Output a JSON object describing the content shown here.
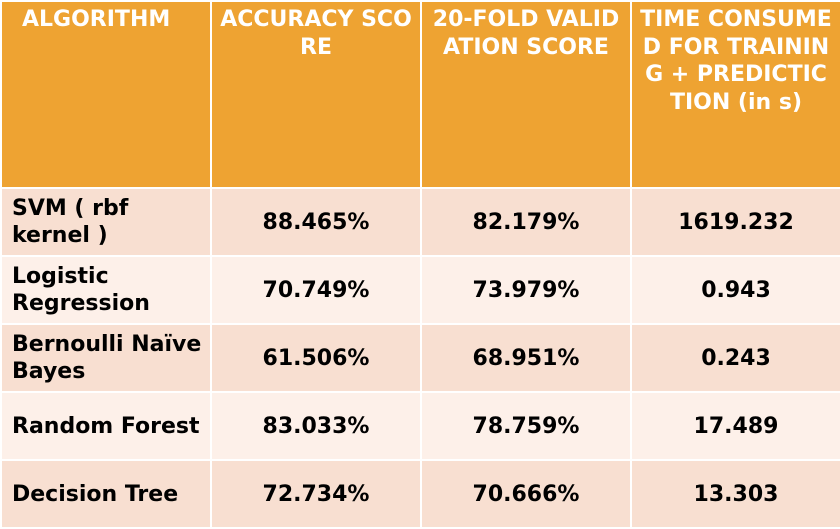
{
  "table": {
    "headers": [
      "ALGORITHM",
      "ACCURACY SCORE",
      "20-FOLD VALIDATION SCORE",
      "TIME CONSUMED FOR TRAINING + PREDICTICTION (in s)"
    ],
    "rows": [
      {
        "algorithm": "SVM ( rbf kernel )",
        "accuracy": "88.465%",
        "validation": "82.179%",
        "time": "1619.232"
      },
      {
        "algorithm": "Logistic Regression",
        "accuracy": "70.749%",
        "validation": "73.979%",
        "time": "0.943"
      },
      {
        "algorithm": "Bernoulli Naïve Bayes",
        "accuracy": "61.506%",
        "validation": "68.951%",
        "time": "0.243"
      },
      {
        "algorithm": "Random Forest",
        "accuracy": "83.033%",
        "validation": "78.759%",
        "time": "17.489"
      },
      {
        "algorithm": "Decision Tree",
        "accuracy": "72.734%",
        "validation": "70.666%",
        "time": "13.303"
      }
    ]
  },
  "colors": {
    "header_bg": "#eea332",
    "header_text": "#ffffff",
    "row_odd_bg": "#f8dfd1",
    "row_even_bg": "#fdf0e9"
  }
}
